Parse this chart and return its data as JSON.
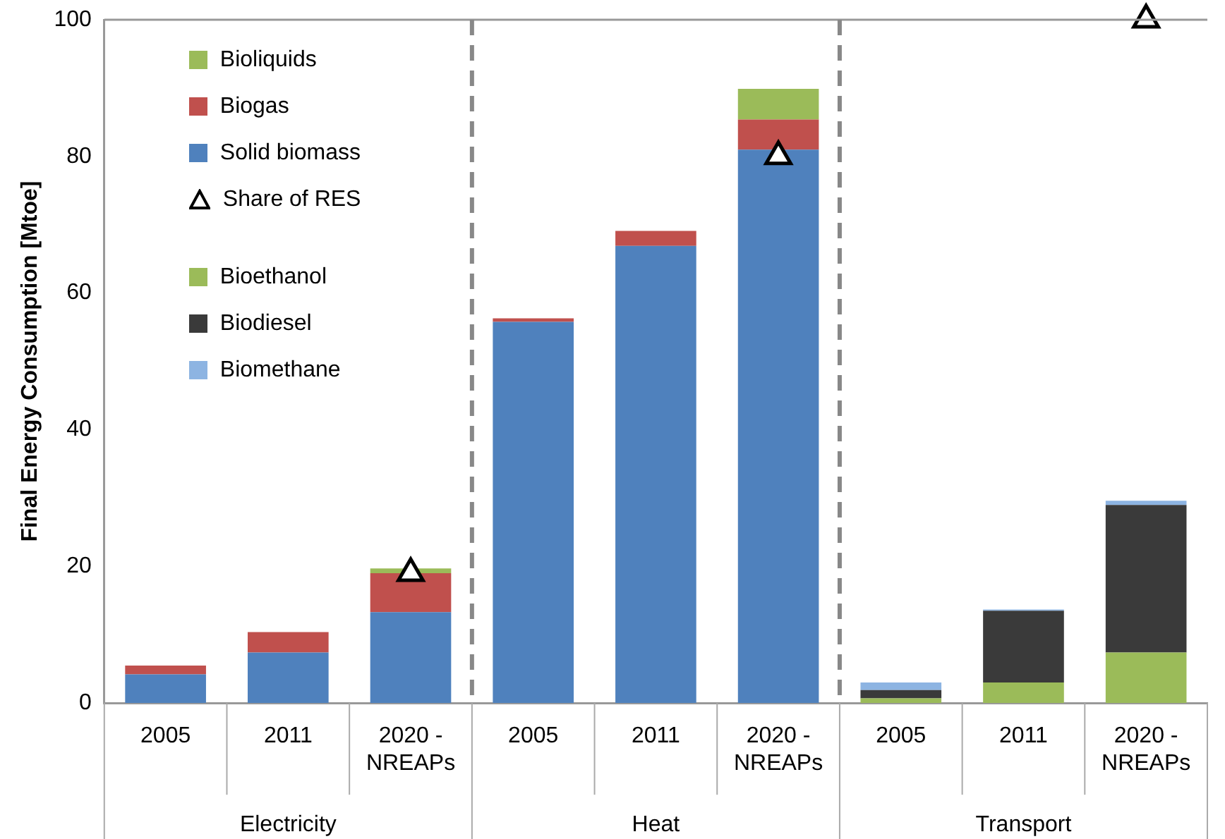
{
  "chart_data": {
    "type": "bar",
    "stacked": true,
    "ylabel": "Final Energy Consumption [Mtoe]",
    "categories": [
      "2005",
      "2011",
      "2020 - NREAPs",
      "2005",
      "2011",
      "2020 - NREAPs",
      "2005",
      "2011",
      "2020 - NREAPs"
    ],
    "annotations": [
      "Electricity",
      "Heat",
      "Transport"
    ],
    "series": [
      {
        "name": "Solid biomass",
        "color": "#4f81bd",
        "values": [
          4.2,
          7.4,
          13.3,
          55.8,
          66.9,
          81.0,
          null,
          null,
          null
        ]
      },
      {
        "name": "Biogas",
        "color": "#c0504d",
        "values": [
          1.3,
          3.0,
          5.7,
          0.5,
          2.2,
          4.4,
          null,
          null,
          null
        ]
      },
      {
        "name": "Bioliquids",
        "color": "#9bbb59",
        "values": [
          null,
          null,
          0.7,
          null,
          null,
          4.5,
          null,
          null,
          null
        ]
      },
      {
        "name": "Bioethanol",
        "color": "#9bbb59",
        "values": [
          null,
          null,
          null,
          null,
          null,
          null,
          0.7,
          3.0,
          7.4
        ]
      },
      {
        "name": "Biodiesel",
        "color": "#3a3a3a",
        "values": [
          null,
          null,
          null,
          null,
          null,
          null,
          1.2,
          10.5,
          21.6
        ]
      },
      {
        "name": "Biomethane",
        "color": "#8db4e2",
        "values": [
          null,
          null,
          null,
          null,
          null,
          null,
          1.1,
          0.2,
          0.6
        ]
      },
      {
        "name": "Share of RES",
        "type": "scatter",
        "color": "#000000",
        "marker": "triangle",
        "values": [
          null,
          null,
          19,
          null,
          null,
          80,
          null,
          null,
          100
        ]
      }
    ],
    "ylim": [
      0,
      100
    ],
    "yticks": [
      0,
      20,
      40,
      60,
      80,
      100
    ],
    "grid": false,
    "legend": "top left"
  }
}
